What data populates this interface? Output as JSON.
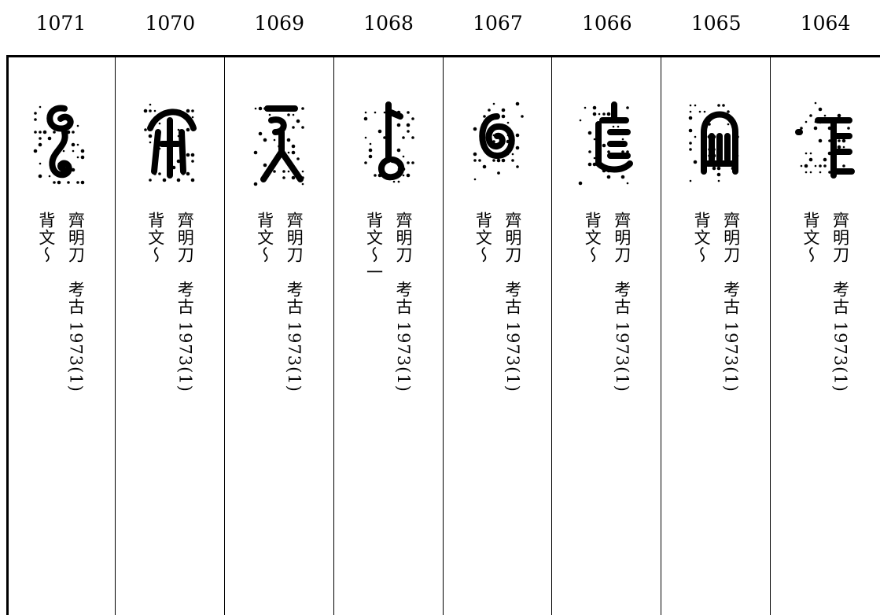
{
  "columns": [
    {
      "number": "1071",
      "source": "齊明刀　考古 1973(1)",
      "note": "背文～"
    },
    {
      "number": "1070",
      "source": "齊明刀　考古 1973(1)",
      "note": "背文～"
    },
    {
      "number": "1069",
      "source": "齊明刀　考古 1973(1)",
      "note": "背文～"
    },
    {
      "number": "1068",
      "source": "齊明刀　考古 1973(1)",
      "note": "背文～一"
    },
    {
      "number": "1067",
      "source": "齊明刀　考古 1973(1)",
      "note": "背文～"
    },
    {
      "number": "1066",
      "source": "齊明刀　考古 1973(1)",
      "note": "背文～"
    },
    {
      "number": "1065",
      "source": "齊明刀　考古 1973(1)",
      "note": "背文～"
    },
    {
      "number": "1064",
      "source": "齊明刀　考古 1973(1)",
      "note": "背文～"
    }
  ]
}
